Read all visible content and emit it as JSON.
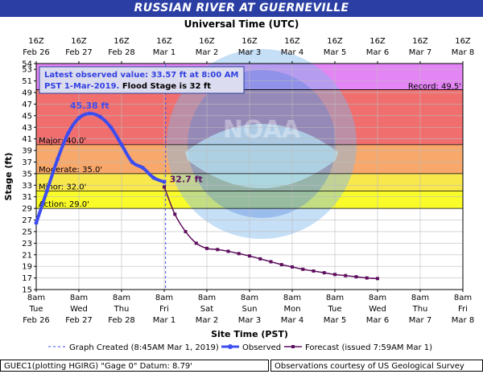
{
  "title": "RUSSIAN RIVER AT GUERNEVILLE",
  "colors": {
    "title_bg": "#2b3ea3",
    "record": "#e485f5",
    "major": "#f06e6e",
    "moderate": "#f8a86a",
    "minor": "#f8e84c",
    "action": "#fafc2a",
    "observed": "#3d4cf0",
    "forecast": "#5e0f5e",
    "created_line": "#3d4cf0"
  },
  "chart_data": {
    "type": "line",
    "top_axis_title": "Universal Time (UTC)",
    "top_ticks": [
      {
        "l1": "16Z",
        "l2": "Feb 26"
      },
      {
        "l1": "16Z",
        "l2": "Feb 27"
      },
      {
        "l1": "16Z",
        "l2": "Feb 28"
      },
      {
        "l1": "16Z",
        "l2": "Mar 1"
      },
      {
        "l1": "16Z",
        "l2": "Mar 2"
      },
      {
        "l1": "16Z",
        "l2": "Mar 3"
      },
      {
        "l1": "16Z",
        "l2": "Mar 4"
      },
      {
        "l1": "16Z",
        "l2": "Mar 5"
      },
      {
        "l1": "16Z",
        "l2": "Mar 6"
      },
      {
        "l1": "16Z",
        "l2": "Mar 7"
      },
      {
        "l1": "16Z",
        "l2": "Mar 8"
      }
    ],
    "bottom_ticks": [
      {
        "l1": "8am",
        "l2": "Tue",
        "l3": "Feb 26"
      },
      {
        "l1": "8am",
        "l2": "Wed",
        "l3": "Feb 27"
      },
      {
        "l1": "8am",
        "l2": "Thu",
        "l3": "Feb 28"
      },
      {
        "l1": "8am",
        "l2": "Fri",
        "l3": "Mar 1"
      },
      {
        "l1": "8am",
        "l2": "Sat",
        "l3": "Mar 2"
      },
      {
        "l1": "8am",
        "l2": "Sun",
        "l3": "Mar 3"
      },
      {
        "l1": "8am",
        "l2": "Mon",
        "l3": "Mar 4"
      },
      {
        "l1": "8am",
        "l2": "Tue",
        "l3": "Mar 5"
      },
      {
        "l1": "8am",
        "l2": "Wed",
        "l3": "Mar 6"
      },
      {
        "l1": "8am",
        "l2": "Thu",
        "l3": "Mar 7"
      },
      {
        "l1": "8am",
        "l2": "Fri",
        "l3": "Mar 8"
      }
    ],
    "xlabel": "Site Time (PST)",
    "ylabel": "Stage (ft)",
    "ylim": [
      15,
      54
    ],
    "y_ticks": [
      "15",
      "17",
      "19",
      "21",
      "23",
      "25",
      "27",
      "29",
      "31",
      "33",
      "35",
      "37",
      "39",
      "41",
      "43",
      "45",
      "47",
      "49",
      "51",
      "53",
      "54"
    ],
    "bands": [
      {
        "name": "record",
        "from": 49.5,
        "to": 54,
        "label": "Record: 49.5'"
      },
      {
        "name": "major",
        "from": 40,
        "to": 49.5,
        "label": "Major: 40.0'"
      },
      {
        "name": "moderate",
        "from": 35,
        "to": 40,
        "label": "Moderate: 35.0'"
      },
      {
        "name": "minor",
        "from": 32,
        "to": 35,
        "label": "Minor: 32.0'"
      },
      {
        "name": "action",
        "from": 29,
        "to": 32,
        "label": "Action: 29.0'"
      }
    ],
    "info_line1": "Latest observed value: 33.57 ft at 8:00 AM",
    "info_line2a": "PST 1-Mar-2019.",
    "info_line2b": "Flood Stage is 32 ft",
    "peak_label": "45.38 ft",
    "last_label": "32.7 ft",
    "series": [
      {
        "name": "Observed",
        "x": [
          "Feb 26 08:00",
          "Feb 26 14:00",
          "Feb 26 20:00",
          "Feb 27 02:00",
          "Feb 27 08:00",
          "Feb 27 14:00",
          "Feb 27 20:00",
          "Feb 28 02:00",
          "Feb 28 08:00",
          "Feb 28 14:00",
          "Feb 28 20:00",
          "Mar 1 02:00",
          "Mar 1 08:00"
        ],
        "y": [
          26.5,
          32,
          37.5,
          42,
          44.6,
          45.38,
          44.8,
          43,
          40,
          37,
          36,
          34.3,
          33.57
        ]
      },
      {
        "name": "Forecast (issued 7:59AM Mar 1)",
        "x": [
          "Mar 1 08:00",
          "Mar 1 14:00",
          "Mar 1 20:00",
          "Mar 2 02:00",
          "Mar 2 08:00",
          "Mar 2 14:00",
          "Mar 2 20:00",
          "Mar 3 02:00",
          "Mar 3 08:00",
          "Mar 3 14:00",
          "Mar 3 20:00",
          "Mar 4 02:00",
          "Mar 4 08:00",
          "Mar 4 14:00",
          "Mar 4 20:00",
          "Mar 5 02:00",
          "Mar 5 08:00",
          "Mar 5 14:00",
          "Mar 5 20:00",
          "Mar 6 02:00",
          "Mar 6 08:00"
        ],
        "y": [
          32.7,
          28,
          25,
          23,
          22.1,
          21.9,
          21.6,
          21.2,
          20.8,
          20.3,
          19.8,
          19.3,
          18.9,
          18.5,
          18.2,
          17.9,
          17.6,
          17.4,
          17.2,
          17.0,
          16.9
        ]
      }
    ],
    "created_at": "Mar 1 08:45",
    "legend": {
      "created": "Graph Created (8:45AM Mar 1, 2019)",
      "observed": "Observed",
      "forecast": "Forecast (issued 7:59AM Mar 1)"
    },
    "watermark": "NOAA"
  },
  "footer": {
    "left": "GUEC1(plotting HGIRG) \"Gage 0\" Datum: 8.79'",
    "right": "Observations courtesy of US Geological Survey"
  }
}
